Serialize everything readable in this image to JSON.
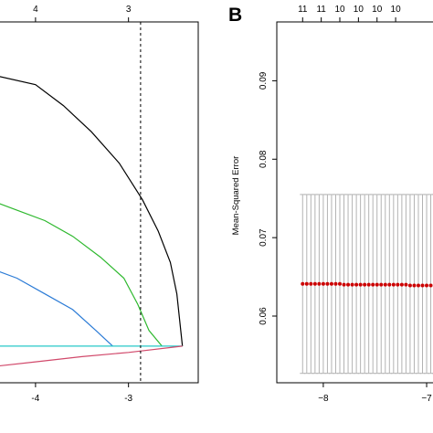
{
  "chart_data": [
    {
      "type": "line",
      "panel": "A",
      "panel_label": "",
      "xlabel": "",
      "ylabel": "",
      "xlim": [
        -4.5,
        -2.25
      ],
      "top_axis_labels": [
        {
          "x": -4,
          "label": "4"
        },
        {
          "x": -3,
          "label": "3"
        }
      ],
      "x_ticks": [
        -4,
        -3
      ],
      "x_tick_labels": [
        "-4",
        "-3"
      ],
      "vertical_line_x": -2.87,
      "series": [
        {
          "color": "#000000",
          "points": [
            [
              -4.5,
              0.2
            ],
            [
              -4.0,
              0.19
            ],
            [
              -3.7,
              0.17
            ],
            [
              -3.4,
              0.145
            ],
            [
              -3.1,
              0.115
            ],
            [
              -2.85,
              0.08
            ],
            [
              -2.68,
              0.05
            ],
            [
              -2.55,
              0.02
            ],
            [
              -2.48,
              -0.01
            ],
            [
              -2.42,
              -0.06
            ]
          ]
        },
        {
          "color": "#2db82d",
          "points": [
            [
              -4.5,
              0.08
            ],
            [
              -4.2,
              0.07
            ],
            [
              -3.9,
              0.06
            ],
            [
              -3.6,
              0.045
            ],
            [
              -3.3,
              0.025
            ],
            [
              -3.05,
              0.005
            ],
            [
              -2.9,
              -0.02
            ],
            [
              -2.78,
              -0.045
            ],
            [
              -2.64,
              -0.06
            ]
          ]
        },
        {
          "color": "#2b7bd6",
          "points": [
            [
              -4.5,
              0.015
            ],
            [
              -4.2,
              0.005
            ],
            [
              -3.9,
              -0.01
            ],
            [
              -3.6,
              -0.025
            ],
            [
              -3.35,
              -0.045
            ],
            [
              -3.17,
              -0.06
            ]
          ]
        },
        {
          "color": "#27c8c8",
          "points": [
            [
              -4.5,
              -0.06
            ],
            [
              -2.42,
              -0.06
            ]
          ]
        },
        {
          "color": "#d1496b",
          "points": [
            [
              -4.5,
              -0.08
            ],
            [
              -4.0,
              -0.075
            ],
            [
              -3.5,
              -0.07
            ],
            [
              -3.0,
              -0.066
            ],
            [
              -2.42,
              -0.06
            ]
          ]
        }
      ]
    },
    {
      "type": "scatter",
      "panel": "B",
      "panel_label": "B",
      "xlabel": "",
      "ylabel": "Mean-Squared Error",
      "ylim": [
        0.0515,
        0.0975
      ],
      "xlim": [
        -8.45,
        -6.85
      ],
      "y_ticks": [
        0.06,
        0.07,
        0.08,
        0.09
      ],
      "y_tick_labels": [
        "0.06",
        "0.07",
        "0.08",
        "0.09"
      ],
      "x_ticks": [
        -8,
        -7
      ],
      "x_tick_labels": [
        "−8",
        "−7"
      ],
      "top_axis_labels": [
        "11",
        "11",
        "10",
        "10",
        "10",
        "10"
      ],
      "top_axis_x": [
        -8.2,
        -8.02,
        -7.84,
        -7.66,
        -7.48,
        -7.3
      ],
      "points_color": "#cc0000",
      "errorbar_color": "#b3b3b3",
      "x": [
        -8.2,
        -8.16,
        -8.12,
        -8.08,
        -8.04,
        -8.0,
        -7.96,
        -7.92,
        -7.88,
        -7.84,
        -7.8,
        -7.76,
        -7.72,
        -7.68,
        -7.64,
        -7.6,
        -7.56,
        -7.52,
        -7.48,
        -7.44,
        -7.4,
        -7.36,
        -7.32,
        -7.28,
        -7.24,
        -7.2,
        -7.16,
        -7.12,
        -7.08,
        -7.04,
        -7.0,
        -6.96,
        -6.92,
        -6.88
      ],
      "mse": [
        0.0641,
        0.0641,
        0.0641,
        0.0641,
        0.0641,
        0.0641,
        0.0641,
        0.0641,
        0.0641,
        0.0641,
        0.064,
        0.064,
        0.064,
        0.064,
        0.064,
        0.064,
        0.064,
        0.064,
        0.064,
        0.064,
        0.064,
        0.064,
        0.064,
        0.064,
        0.064,
        0.064,
        0.0639,
        0.0639,
        0.0639,
        0.0639,
        0.0639,
        0.0639,
        0.0639,
        0.0639
      ],
      "upper": [
        0.0755,
        0.0755,
        0.0755,
        0.0755,
        0.0755,
        0.0755,
        0.0755,
        0.0755,
        0.0755,
        0.0755,
        0.0755,
        0.0755,
        0.0755,
        0.0755,
        0.0755,
        0.0755,
        0.0755,
        0.0755,
        0.0755,
        0.0755,
        0.0755,
        0.0755,
        0.0755,
        0.0755,
        0.0755,
        0.0755,
        0.0755,
        0.0755,
        0.0755,
        0.0755,
        0.0755,
        0.0755,
        0.0755,
        0.0755
      ],
      "lower": [
        0.0527,
        0.0527,
        0.0527,
        0.0527,
        0.0527,
        0.0527,
        0.0527,
        0.0527,
        0.0527,
        0.0527,
        0.0527,
        0.0527,
        0.0527,
        0.0527,
        0.0527,
        0.0527,
        0.0527,
        0.0527,
        0.0527,
        0.0527,
        0.0527,
        0.0527,
        0.0527,
        0.0527,
        0.0527,
        0.0527,
        0.0527,
        0.0527,
        0.0527,
        0.0527,
        0.0527,
        0.0527,
        0.0527,
        0.0527
      ]
    }
  ]
}
